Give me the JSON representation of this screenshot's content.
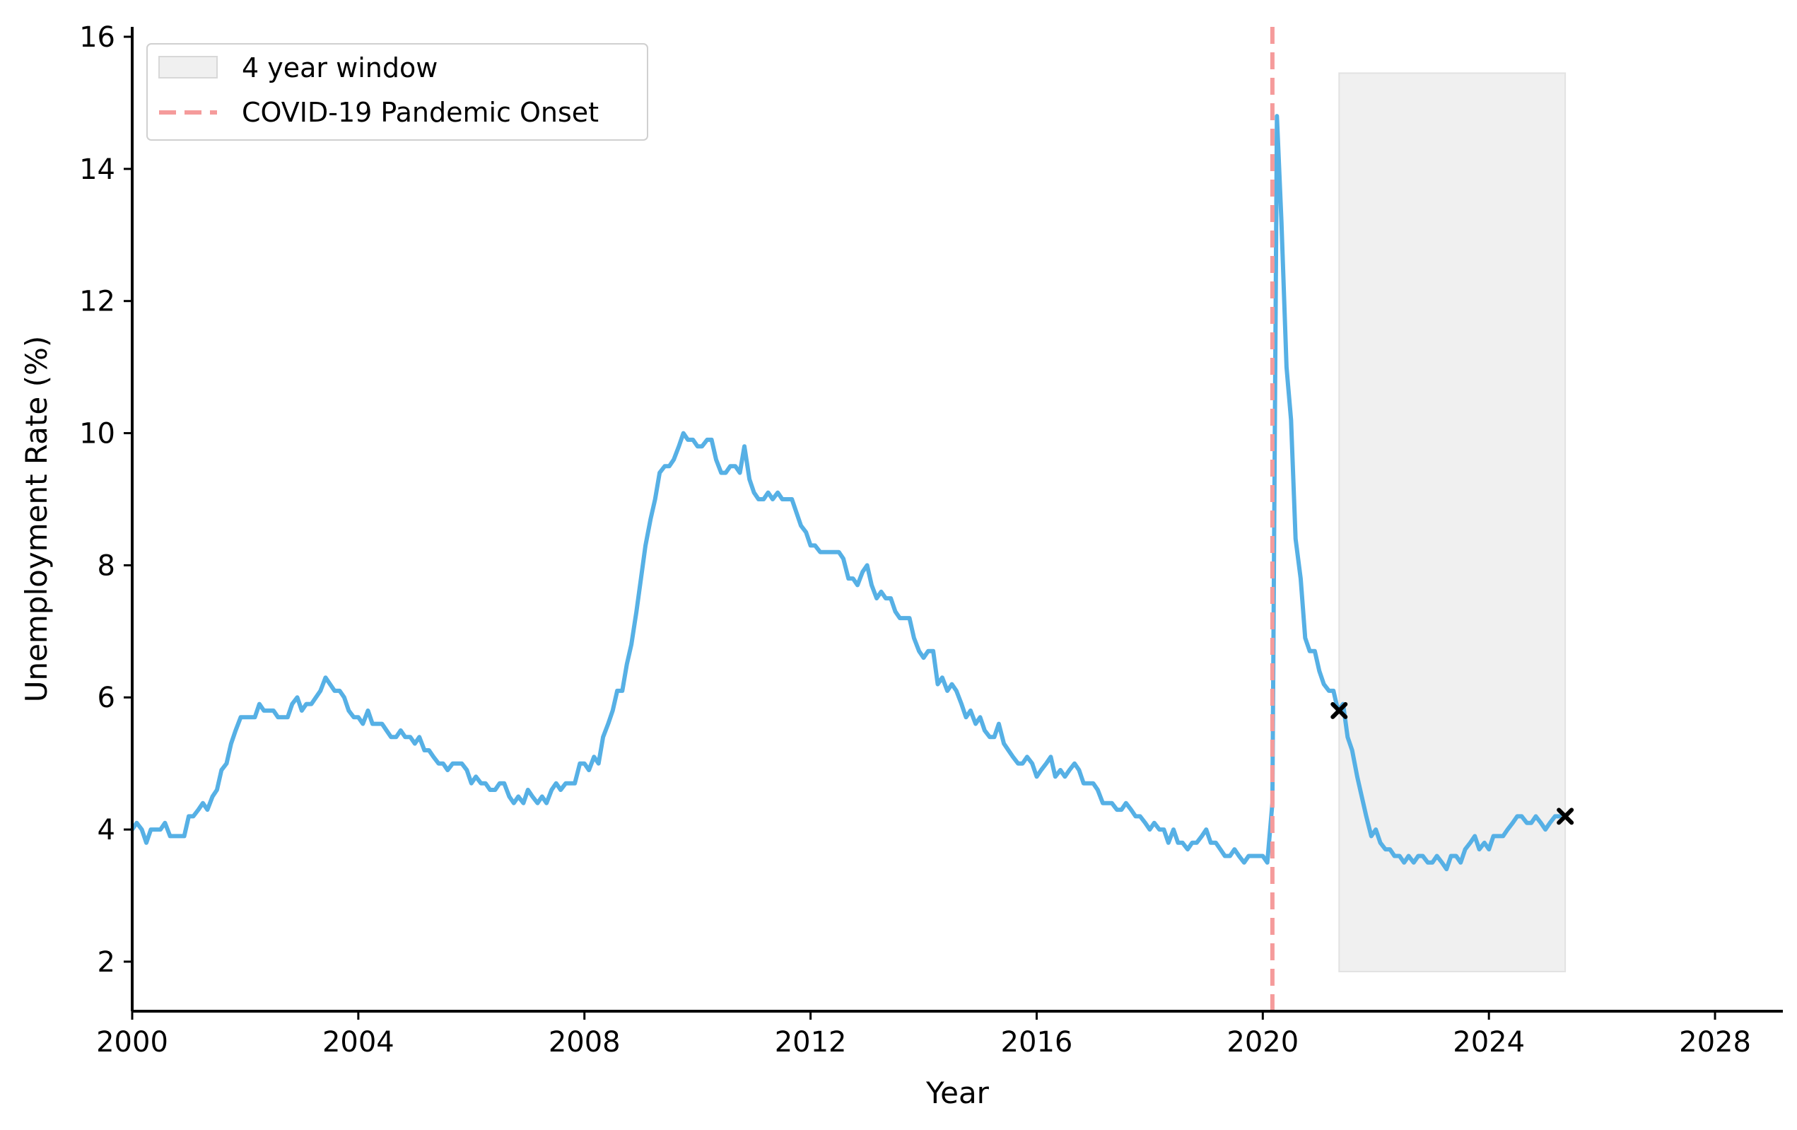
{
  "chart_data": {
    "type": "line",
    "xlabel": "Year",
    "ylabel": "Unemployment Rate (%)",
    "xlim": [
      2000,
      2029.2
    ],
    "ylim": [
      1.25,
      16.15
    ],
    "x_ticks": [
      "2000",
      "2004",
      "2008",
      "2012",
      "2016",
      "2020",
      "2024",
      "2028"
    ],
    "y_ticks": [
      "2",
      "4",
      "6",
      "8",
      "10",
      "12",
      "14",
      "16"
    ],
    "grid": false,
    "legend_position": "top-left",
    "legend": [
      {
        "label": "4 year window",
        "kind": "patch",
        "color": "#f0f0f0"
      },
      {
        "label": "COVID-19 Pandemic Onset",
        "kind": "dashed-line",
        "color": "#f59b9b"
      }
    ],
    "line_color": "#56b0e5",
    "series": [
      {
        "x": [
          2000.0,
          2000.08,
          2000.17,
          2000.25,
          2000.33,
          2000.42,
          2000.5,
          2000.58,
          2000.67,
          2000.75,
          2000.83,
          2000.92,
          2001.0,
          2001.08,
          2001.17,
          2001.25,
          2001.33,
          2001.42,
          2001.5,
          2001.58,
          2001.67,
          2001.75,
          2001.83,
          2001.92,
          2002.0,
          2002.08,
          2002.17,
          2002.25,
          2002.33,
          2002.42,
          2002.5,
          2002.58,
          2002.67,
          2002.75,
          2002.83,
          2002.92,
          2003.0,
          2003.08,
          2003.17,
          2003.25,
          2003.33,
          2003.42,
          2003.5,
          2003.58,
          2003.67,
          2003.75,
          2003.83,
          2003.92,
          2004.0,
          2004.08,
          2004.17,
          2004.25,
          2004.33,
          2004.42,
          2004.5,
          2004.58,
          2004.67,
          2004.75,
          2004.83,
          2004.92,
          2005.0,
          2005.08,
          2005.17,
          2005.25,
          2005.33,
          2005.42,
          2005.5,
          2005.58,
          2005.67,
          2005.75,
          2005.83,
          2005.92,
          2006.0,
          2006.08,
          2006.17,
          2006.25,
          2006.33,
          2006.42,
          2006.5,
          2006.58,
          2006.67,
          2006.75,
          2006.83,
          2006.92,
          2007.0,
          2007.08,
          2007.17,
          2007.25,
          2007.33,
          2007.42,
          2007.5,
          2007.58,
          2007.67,
          2007.75,
          2007.83,
          2007.92,
          2008.0,
          2008.08,
          2008.17,
          2008.25,
          2008.33,
          2008.42,
          2008.5,
          2008.58,
          2008.67,
          2008.75,
          2008.83,
          2008.92,
          2009.0,
          2009.08,
          2009.17,
          2009.25,
          2009.33,
          2009.42,
          2009.5,
          2009.58,
          2009.67,
          2009.75,
          2009.83,
          2009.92,
          2010.0,
          2010.08,
          2010.17,
          2010.25,
          2010.33,
          2010.42,
          2010.5,
          2010.58,
          2010.67,
          2010.75,
          2010.83,
          2010.92,
          2011.0,
          2011.08,
          2011.17,
          2011.25,
          2011.33,
          2011.42,
          2011.5,
          2011.58,
          2011.67,
          2011.75,
          2011.83,
          2011.92,
          2012.0,
          2012.08,
          2012.17,
          2012.25,
          2012.33,
          2012.42,
          2012.5,
          2012.58,
          2012.67,
          2012.75,
          2012.83,
          2012.92,
          2013.0,
          2013.08,
          2013.17,
          2013.25,
          2013.33,
          2013.42,
          2013.5,
          2013.58,
          2013.67,
          2013.75,
          2013.83,
          2013.92,
          2014.0,
          2014.08,
          2014.17,
          2014.25,
          2014.33,
          2014.42,
          2014.5,
          2014.58,
          2014.67,
          2014.75,
          2014.83,
          2014.92,
          2015.0,
          2015.08,
          2015.17,
          2015.25,
          2015.33,
          2015.42,
          2015.5,
          2015.58,
          2015.67,
          2015.75,
          2015.83,
          2015.92,
          2016.0,
          2016.08,
          2016.17,
          2016.25,
          2016.33,
          2016.42,
          2016.5,
          2016.58,
          2016.67,
          2016.75,
          2016.83,
          2016.92,
          2017.0,
          2017.08,
          2017.17,
          2017.25,
          2017.33,
          2017.42,
          2017.5,
          2017.58,
          2017.67,
          2017.75,
          2017.83,
          2017.92,
          2018.0,
          2018.08,
          2018.17,
          2018.25,
          2018.33,
          2018.42,
          2018.5,
          2018.58,
          2018.67,
          2018.75,
          2018.83,
          2018.92,
          2019.0,
          2019.08,
          2019.17,
          2019.25,
          2019.33,
          2019.42,
          2019.5,
          2019.58,
          2019.67,
          2019.75,
          2019.83,
          2019.92,
          2020.0,
          2020.08,
          2020.17,
          2020.25,
          2020.33,
          2020.42,
          2020.5,
          2020.58,
          2020.67,
          2020.75,
          2020.83,
          2020.92,
          2021.0,
          2021.08,
          2021.17,
          2021.25,
          2021.33,
          2021.42,
          2021.5,
          2021.58,
          2021.67,
          2021.75,
          2021.83,
          2021.92,
          2022.0,
          2022.08,
          2022.17,
          2022.25,
          2022.33,
          2022.42,
          2022.5,
          2022.58,
          2022.67,
          2022.75,
          2022.83,
          2022.92,
          2023.0,
          2023.08,
          2023.17,
          2023.25,
          2023.33,
          2023.42,
          2023.5,
          2023.58,
          2023.67,
          2023.75,
          2023.83,
          2023.92,
          2024.0,
          2024.08,
          2024.17,
          2024.25,
          2024.33,
          2024.42,
          2024.5,
          2024.58,
          2024.67,
          2024.75,
          2024.83,
          2024.92,
          2025.0,
          2025.08,
          2025.17,
          2025.25
        ],
        "values": [
          4.0,
          4.1,
          4.0,
          3.8,
          4.0,
          4.0,
          4.0,
          4.1,
          3.9,
          3.9,
          3.9,
          3.9,
          4.2,
          4.2,
          4.3,
          4.4,
          4.3,
          4.5,
          4.6,
          4.9,
          5.0,
          5.3,
          5.5,
          5.7,
          5.7,
          5.7,
          5.7,
          5.9,
          5.8,
          5.8,
          5.8,
          5.7,
          5.7,
          5.7,
          5.9,
          6.0,
          5.8,
          5.9,
          5.9,
          6.0,
          6.1,
          6.3,
          6.2,
          6.1,
          6.1,
          6.0,
          5.8,
          5.7,
          5.7,
          5.6,
          5.8,
          5.6,
          5.6,
          5.6,
          5.5,
          5.4,
          5.4,
          5.5,
          5.4,
          5.4,
          5.3,
          5.4,
          5.2,
          5.2,
          5.1,
          5.0,
          5.0,
          4.9,
          5.0,
          5.0,
          5.0,
          4.9,
          4.7,
          4.8,
          4.7,
          4.7,
          4.6,
          4.6,
          4.7,
          4.7,
          4.5,
          4.4,
          4.5,
          4.4,
          4.6,
          4.5,
          4.4,
          4.5,
          4.4,
          4.6,
          4.7,
          4.6,
          4.7,
          4.7,
          4.7,
          5.0,
          5.0,
          4.9,
          5.1,
          5.0,
          5.4,
          5.6,
          5.8,
          6.1,
          6.1,
          6.5,
          6.8,
          7.3,
          7.8,
          8.3,
          8.7,
          9.0,
          9.4,
          9.5,
          9.5,
          9.6,
          9.8,
          10.0,
          9.9,
          9.9,
          9.8,
          9.8,
          9.9,
          9.9,
          9.6,
          9.4,
          9.4,
          9.5,
          9.5,
          9.4,
          9.8,
          9.3,
          9.1,
          9.0,
          9.0,
          9.1,
          9.0,
          9.1,
          9.0,
          9.0,
          9.0,
          8.8,
          8.6,
          8.5,
          8.3,
          8.3,
          8.2,
          8.2,
          8.2,
          8.2,
          8.2,
          8.1,
          7.8,
          7.8,
          7.7,
          7.9,
          8.0,
          7.7,
          7.5,
          7.6,
          7.5,
          7.5,
          7.3,
          7.2,
          7.2,
          7.2,
          6.9,
          6.7,
          6.6,
          6.7,
          6.7,
          6.2,
          6.3,
          6.1,
          6.2,
          6.1,
          5.9,
          5.7,
          5.8,
          5.6,
          5.7,
          5.5,
          5.4,
          5.4,
          5.6,
          5.3,
          5.2,
          5.1,
          5.0,
          5.0,
          5.1,
          5.0,
          4.8,
          4.9,
          5.0,
          5.1,
          4.8,
          4.9,
          4.8,
          4.9,
          5.0,
          4.9,
          4.7,
          4.7,
          4.7,
          4.6,
          4.4,
          4.4,
          4.4,
          4.3,
          4.3,
          4.4,
          4.3,
          4.2,
          4.2,
          4.1,
          4.0,
          4.1,
          4.0,
          4.0,
          3.8,
          4.0,
          3.8,
          3.8,
          3.7,
          3.8,
          3.8,
          3.9,
          4.0,
          3.8,
          3.8,
          3.7,
          3.6,
          3.6,
          3.7,
          3.6,
          3.5,
          3.6,
          3.6,
          3.6,
          3.6,
          3.5,
          4.4,
          14.8,
          13.2,
          11.0,
          10.2,
          8.4,
          7.8,
          6.9,
          6.7,
          6.7,
          6.4,
          6.2,
          6.1,
          6.1,
          5.8,
          5.9,
          5.4,
          5.2,
          4.8,
          4.5,
          4.2,
          3.9,
          4.0,
          3.8,
          3.7,
          3.7,
          3.6,
          3.6,
          3.5,
          3.6,
          3.5,
          3.6,
          3.6,
          3.5,
          3.5,
          3.6,
          3.5,
          3.4,
          3.6,
          3.6,
          3.5,
          3.7,
          3.8,
          3.9,
          3.7,
          3.8,
          3.7,
          3.9,
          3.9,
          3.9,
          4.0,
          4.1,
          4.2,
          4.2,
          4.1,
          4.1,
          4.2,
          4.1,
          4.0,
          4.1,
          4.2,
          4.2
        ]
      }
    ],
    "shaded_window": {
      "x": [
        2021.35,
        2025.35
      ],
      "y": [
        1.85,
        15.45
      ],
      "color": "#f0f0f0"
    },
    "vline": {
      "x": 2020.17,
      "color": "#f59b9b",
      "style": "dashed"
    },
    "markers": [
      {
        "x": 2021.35,
        "y": 5.8,
        "symbol": "x"
      },
      {
        "x": 2025.35,
        "y": 4.2,
        "symbol": "x"
      }
    ]
  }
}
